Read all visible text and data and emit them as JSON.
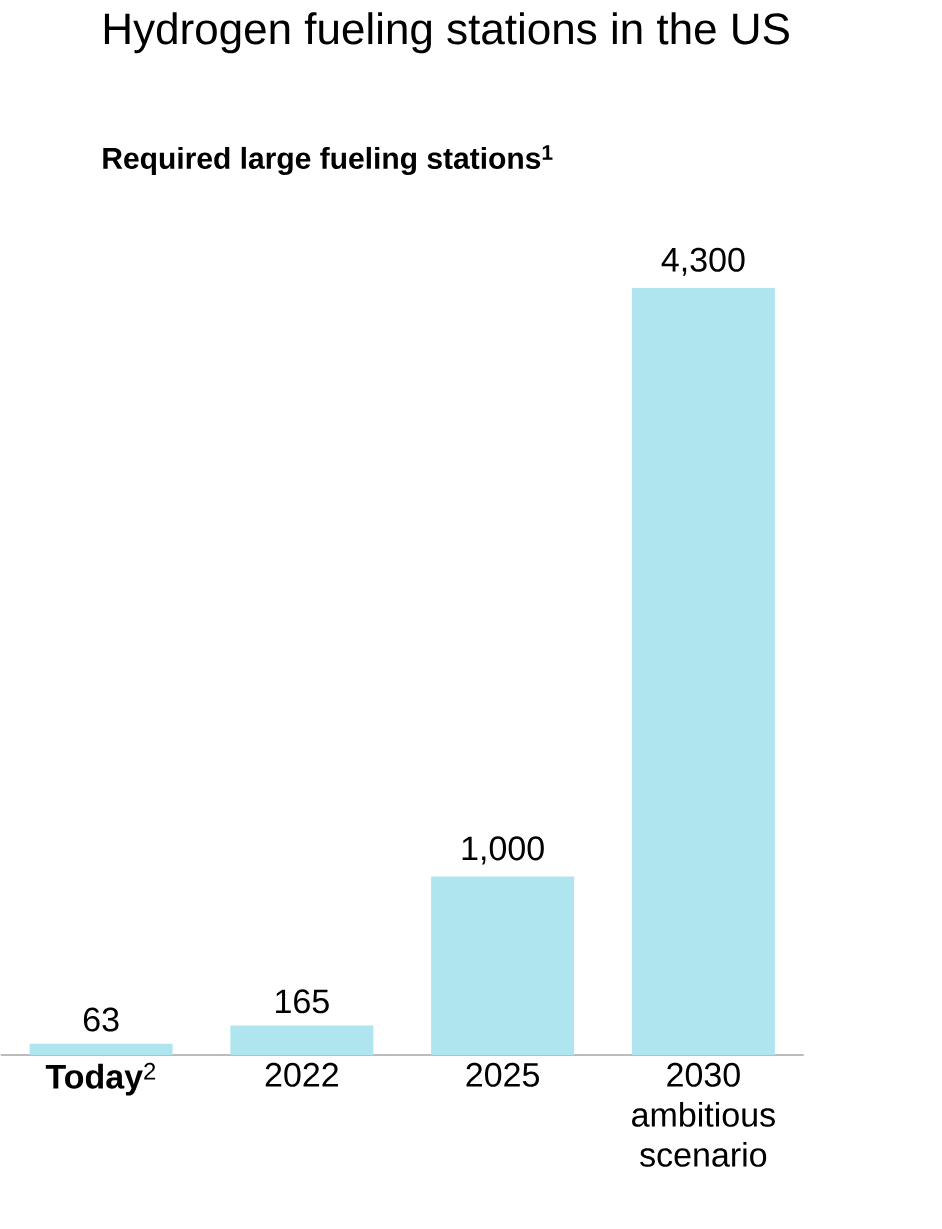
{
  "chart_data": {
    "type": "bar",
    "title": "Hydrogen fueling stations in the US",
    "subtitle": "Required large fueling stations$^{1}$",
    "categories": [
      "**Today**$^{2}$",
      "2022",
      "2025",
      "2030 ambitious scenario"
    ],
    "values": [
      63,
      165,
      1000,
      4300
    ],
    "value_labels": [
      "63",
      "165",
      "1,000",
      "4,300"
    ],
    "color": "#aee5ef"
  }
}
